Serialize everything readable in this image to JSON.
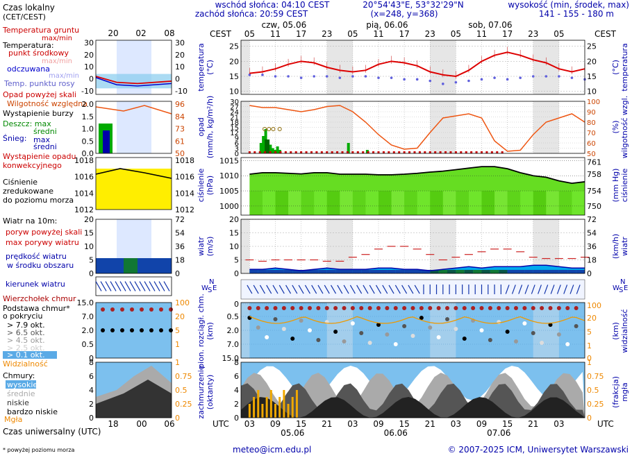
{
  "header": {
    "sunrise": "wschód słońca: 04:10 CEST",
    "sunset": "zachód słońca: 20:59 CEST",
    "coords": "20°54'43\"E, 53°32'29\"N",
    "grid": "(x=248, y=368)",
    "height_title": "wysokość (min, środek, max)",
    "height_values": "141 - 155 - 180 m"
  },
  "legend": {
    "local_time": "Czas lokalny",
    "local_time_zone": "(CET/CEST)",
    "local_hours": [
      "20",
      "02",
      "08"
    ],
    "temp": [
      "Temperatura gruntu",
      "max/min",
      "Temperatura:",
      "punkt środkowy",
      "max/min",
      "odczuwana",
      "max/min",
      "Temp. punktu rosy"
    ],
    "precip": [
      "Opad powyżej skali",
      "Wilgotność względna",
      "Wystąpienie burzy",
      "Deszcz: max",
      "średni",
      "Śnieg:",
      "max",
      "średni",
      "Wystąpienie opadu",
      "konwekcyjnego"
    ],
    "pressure": [
      "Ciśnienie",
      "zredukowane",
      "do poziomu morza"
    ],
    "wind": [
      "Wiatr na 10m:",
      "poryw powyżej skali",
      "max porywy wiatru",
      "prędkość wiatru",
      "w środku obszaru"
    ],
    "winddir": "kierunek wiatru",
    "clouds_tops": [
      "Wierzchołek chmur",
      "Podstawa chmur*",
      "o pokryciu",
      "> 7.9 okt.",
      "> 6.5 okt.",
      "> 4.5 okt.",
      "> 2.5 okt.",
      "> 0.1 okt.",
      "Widzialność"
    ],
    "clouds": [
      "Chmury:",
      "wysokie",
      "średnie",
      "niskie",
      "bardzo niskie",
      "Mgła"
    ],
    "utc_hours": [
      "18",
      "00",
      "06"
    ],
    "utc_label": "Czas uniwersalny (UTC)",
    "footnote": "* powyżej poziomu morza"
  },
  "legend_axes": {
    "temp_left": [
      "30",
      "20",
      "10",
      "0",
      "-10"
    ],
    "temp_right": [
      "30",
      "20",
      "10",
      "0",
      "-10"
    ],
    "precip_left": [
      "2.0",
      "1.5",
      "1.0",
      "0.5",
      "0.0"
    ],
    "precip_right": [
      "96",
      "84",
      "73",
      "61",
      "50"
    ],
    "pres_left": [
      "1018",
      "1016",
      "1014",
      "1012"
    ],
    "pres_right": [
      "1018",
      "1016",
      "1014",
      "1012"
    ],
    "wind_left": [
      "20",
      "15",
      "10",
      "5",
      "0"
    ],
    "wind_right": [
      "72",
      "54",
      "36",
      "18",
      "0"
    ],
    "cb_left": [
      "15.0",
      "7.0",
      "2.0",
      "0.5",
      "0"
    ],
    "cb_right": [
      "100",
      "20",
      "5",
      "1"
    ],
    "cl_left": [
      "8",
      "6",
      "4",
      "2",
      "0"
    ],
    "cl_right": [
      "1",
      "0.75",
      "0.5",
      "0.25",
      "0"
    ]
  },
  "main": {
    "top_left": "CEST",
    "top_right": "CEST",
    "days": [
      "czw, 05.06",
      "pią, 06.06",
      "sob, 07.06"
    ],
    "cest_hours": [
      "05",
      "11",
      "17",
      "23",
      "05",
      "11",
      "17",
      "23",
      "05",
      "11",
      "17",
      "23",
      "05"
    ],
    "utc_hours": [
      "03",
      "09",
      "15",
      "21",
      "03",
      "09",
      "15",
      "21",
      "03",
      "09",
      "15",
      "21",
      "03"
    ],
    "utc_days": [
      "05.06",
      "06.06",
      "07.06"
    ],
    "utc_left": "UTC",
    "utc_right": "UTC"
  },
  "panels": {
    "temp": {
      "left_label": [
        "temperatura",
        "(°C)"
      ],
      "right_label": [
        "(°C)",
        "temperatura"
      ],
      "ticks": [
        "25",
        "20",
        "15",
        "10"
      ]
    },
    "precip": {
      "left_label": [
        "opad",
        "(mm/h, kg/m²/h)"
      ],
      "right_label": [
        "(%)",
        "wilgotność wzgl."
      ],
      "left_ticks": [
        "30",
        "27",
        "24",
        "21",
        "18",
        "15",
        "12",
        "9",
        "6",
        "3",
        "0"
      ],
      "right_ticks": [
        "100",
        "90",
        "80",
        "70",
        "60",
        "50"
      ]
    },
    "pressure": {
      "left_label": [
        "ciśnienie",
        "(hPa)"
      ],
      "right_label": [
        "(mm Hg)",
        "ciśnienie"
      ],
      "left_ticks": [
        "1015",
        "1010",
        "1005",
        "1000"
      ],
      "right_ticks": [
        "761",
        "758",
        "754",
        "750"
      ]
    },
    "wind": {
      "left_label": [
        "wiatr",
        "(m/s)"
      ],
      "right_label": [
        "(km/h)",
        "wiatr"
      ],
      "left_ticks": [
        "20",
        "15",
        "10",
        "5",
        "0"
      ],
      "right_ticks": [
        "72",
        "54",
        "36",
        "18",
        "0"
      ]
    },
    "clouds_base": {
      "left_label": [
        "pion. rozciągł. chm.",
        "(km)"
      ],
      "right_label": [
        "(km)",
        "widzialność"
      ],
      "left_ticks": [
        "15.0",
        "7.0",
        "2.0",
        "0.5",
        "0"
      ],
      "right_ticks": [
        "100",
        "20",
        "5",
        "1",
        "0"
      ]
    },
    "clouds": {
      "left_label": [
        "zachmurzenie",
        "(oktanty)"
      ],
      "right_label": [
        "(frakcja)",
        "mgła"
      ],
      "left_ticks": [
        "8",
        "6",
        "4",
        "2",
        "0"
      ],
      "right_ticks": [
        "1",
        "0.75",
        "0.5",
        "0.25",
        "0"
      ]
    },
    "compass": {
      "n": "N",
      "w": "W",
      "s": "S",
      "e": "E"
    }
  },
  "footer": {
    "email": "meteo@icm.edu.pl",
    "copyright": "© 2007-2025 ICM, Uniwersytet Warszawski"
  },
  "chart_data": [
    {
      "type": "line",
      "title": "temperatura",
      "ylabel": "(°C)",
      "ylim": [
        9,
        27
      ],
      "x_hours_from_start": [
        0,
        3,
        6,
        9,
        12,
        15,
        18,
        21,
        24,
        27,
        30,
        33,
        36,
        39,
        42,
        45,
        48,
        51,
        54,
        57,
        60,
        63,
        66,
        69,
        72,
        75,
        78
      ],
      "series": [
        {
          "name": "Temperatura: punkt środkowy",
          "values": [
            16,
            16.5,
            17.5,
            19,
            20,
            19.5,
            18,
            17,
            16.5,
            17,
            19,
            20,
            19.5,
            18.5,
            16.5,
            15.5,
            15,
            17,
            20,
            22,
            23,
            22,
            20.5,
            19.5,
            17.5,
            16.5,
            17.5
          ]
        },
        {
          "name": "Temp. punktu rosy",
          "values": [
            15.5,
            15.5,
            15,
            15,
            14.5,
            15,
            15,
            14.5,
            15,
            15,
            14.5,
            14.5,
            14,
            14,
            13.5,
            12.5,
            13,
            13.5,
            14,
            14.5,
            14,
            14.5,
            15,
            15,
            15,
            14.5,
            14
          ]
        }
      ]
    },
    {
      "type": "line",
      "title": "wilgotność wzgl.",
      "ylabel": "(%)",
      "ylim": [
        50,
        100
      ],
      "x_hours_from_start": [
        0,
        3,
        6,
        9,
        12,
        15,
        18,
        21,
        24,
        27,
        30,
        33,
        36,
        39,
        42,
        45,
        48,
        51,
        54,
        57,
        60,
        63,
        66,
        69,
        72,
        75,
        78
      ],
      "series": [
        {
          "name": "Wilgotność względna",
          "values": [
            96,
            94,
            94,
            92,
            90,
            92,
            95,
            96,
            90,
            80,
            68,
            58,
            54,
            55,
            70,
            84,
            86,
            88,
            84,
            62,
            52,
            53,
            68,
            80,
            84,
            88,
            80
          ]
        }
      ]
    },
    {
      "type": "line",
      "title": "ciśnienie",
      "ylabel": "(hPa)",
      "ylim": [
        997,
        1016
      ],
      "x_hours_from_start": [
        0,
        3,
        6,
        9,
        12,
        15,
        18,
        21,
        24,
        27,
        30,
        33,
        36,
        39,
        42,
        45,
        48,
        51,
        54,
        57,
        60,
        63,
        66,
        69,
        72,
        75,
        78
      ],
      "series": [
        {
          "name": "Ciśnienie",
          "values": [
            1010.5,
            1011,
            1011,
            1010.8,
            1010.6,
            1011,
            1011,
            1010.5,
            1010.5,
            1010.5,
            1010.3,
            1010.3,
            1010.5,
            1010.8,
            1011.2,
            1011.5,
            1012,
            1012.5,
            1013,
            1013,
            1012.3,
            1011,
            1010,
            1009.5,
            1008.3,
            1007.5,
            1008
          ]
        }
      ]
    },
    {
      "type": "line",
      "title": "wiatr",
      "ylabel": "(m/s)",
      "ylim": [
        0,
        20
      ],
      "x_hours_from_start": [
        0,
        3,
        6,
        9,
        12,
        15,
        18,
        21,
        24,
        27,
        30,
        33,
        36,
        39,
        42,
        45,
        48,
        51,
        54,
        57,
        60,
        63,
        66,
        69,
        72,
        75,
        78
      ],
      "series": [
        {
          "name": "prędkość wiatru",
          "values": [
            1.5,
            1.5,
            2,
            1.5,
            1,
            1.5,
            2,
            1.5,
            1.5,
            1.5,
            2,
            2,
            1.5,
            1.5,
            1,
            1.5,
            2,
            2.5,
            2,
            2.5,
            2.5,
            2.5,
            3,
            3,
            2.5,
            2,
            2
          ]
        },
        {
          "name": "max porywy wiatru",
          "values": [
            5,
            4.5,
            5,
            5,
            5,
            5,
            4.5,
            4.5,
            6,
            7,
            9,
            10,
            10,
            9,
            7,
            5,
            6,
            7,
            8,
            9,
            9,
            8,
            6,
            5.5,
            5.5,
            5.5,
            6
          ]
        }
      ]
    }
  ]
}
